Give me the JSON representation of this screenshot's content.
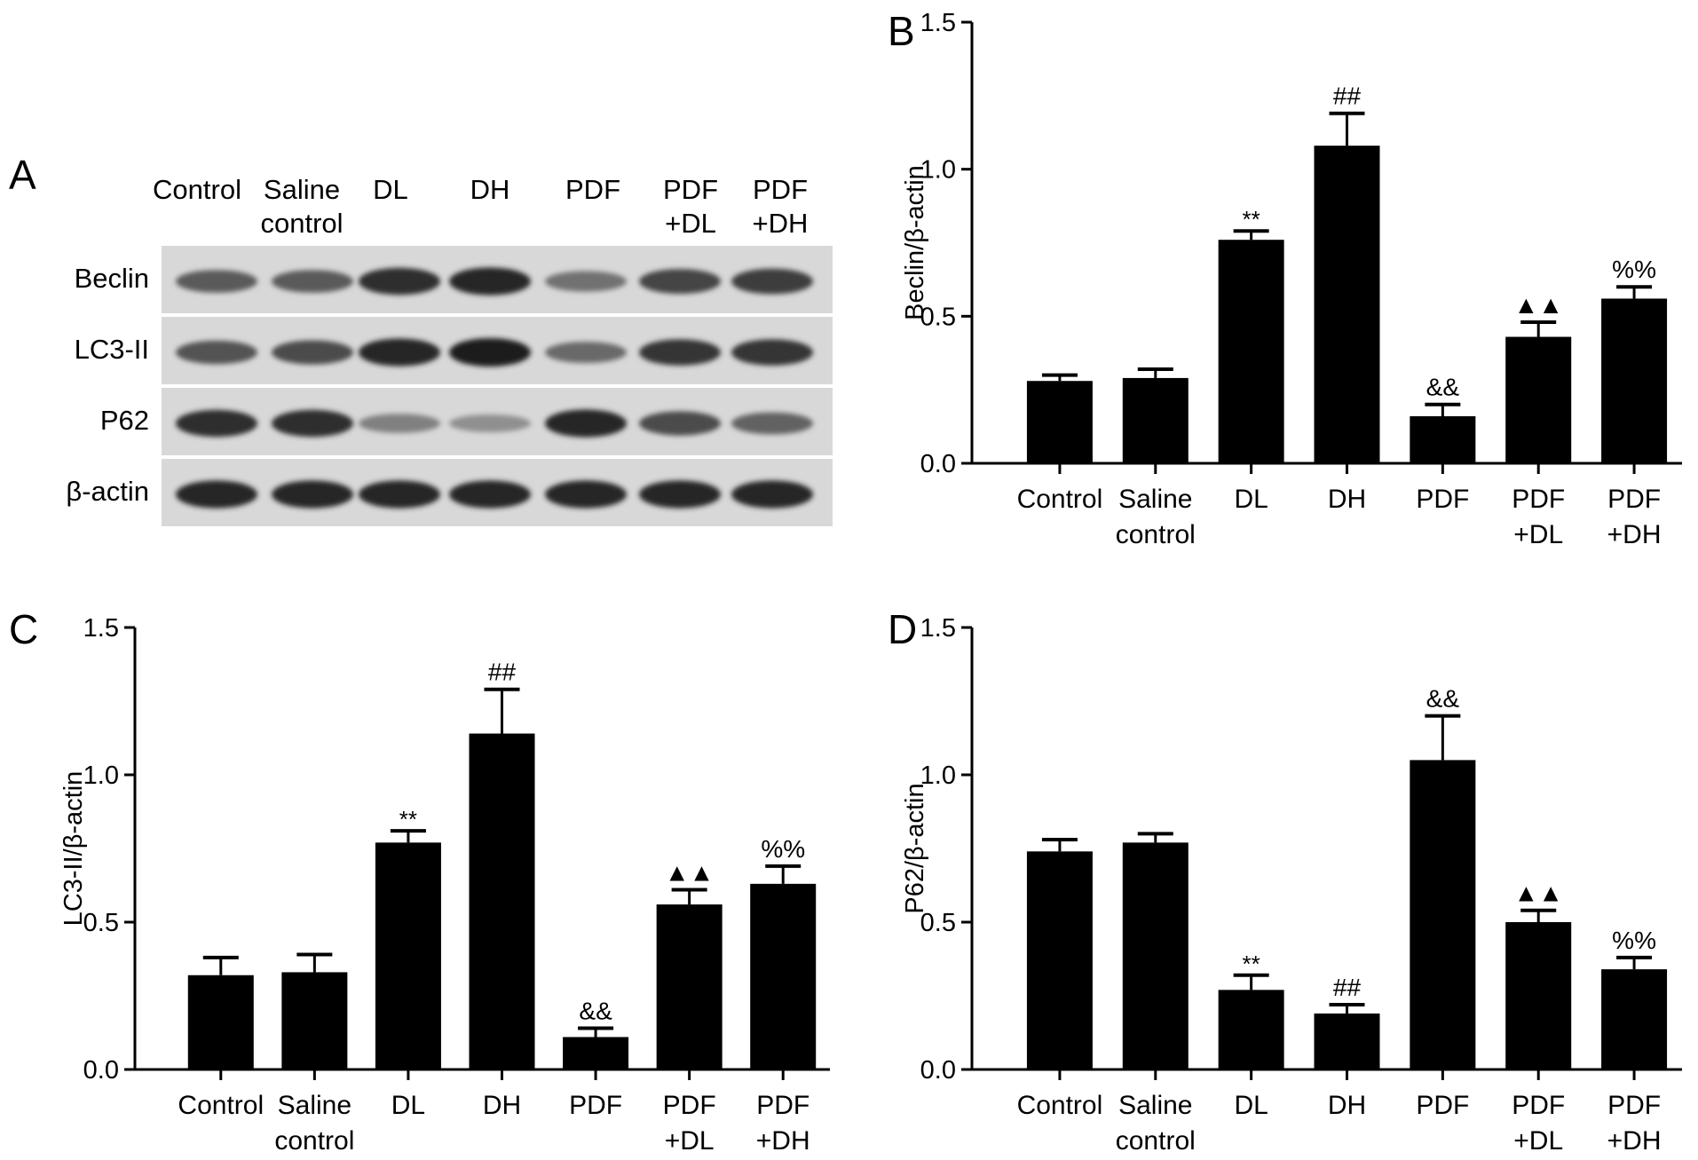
{
  "blot": {
    "letter": "A",
    "lanes": [
      [
        "Control"
      ],
      [
        "Saline",
        "control"
      ],
      [
        "DL"
      ],
      [
        "DH"
      ],
      [
        "PDF"
      ],
      [
        "PDF",
        "+DL"
      ],
      [
        "PDF",
        "+DH"
      ]
    ],
    "rows": [
      "Beclin",
      "LC3-II",
      "P62",
      "β-actin"
    ]
  },
  "chart_data": [
    {
      "panel": "B",
      "type": "bar",
      "ylabel": "Beclin/β-actin",
      "ylim": [
        0,
        1.5
      ],
      "yticks": [
        "0.0",
        "0.5",
        "1.0",
        "1.5"
      ],
      "categories": [
        [
          "Control"
        ],
        [
          "Saline",
          "control"
        ],
        [
          "DL"
        ],
        [
          "DH"
        ],
        [
          "PDF"
        ],
        [
          "PDF",
          "+DL"
        ],
        [
          "PDF",
          "+DH"
        ]
      ],
      "values": [
        0.28,
        0.29,
        0.76,
        1.08,
        0.16,
        0.43,
        0.56
      ],
      "errors": [
        0.02,
        0.03,
        0.03,
        0.11,
        0.04,
        0.05,
        0.04
      ],
      "annotations": [
        "",
        "",
        "**",
        "##",
        "&&",
        "▲▲",
        "%%"
      ]
    },
    {
      "panel": "C",
      "type": "bar",
      "ylabel": "LC3-II/β-actin",
      "ylim": [
        0,
        1.5
      ],
      "yticks": [
        "0.0",
        "0.5",
        "1.0",
        "1.5"
      ],
      "categories": [
        [
          "Control"
        ],
        [
          "Saline",
          "control"
        ],
        [
          "DL"
        ],
        [
          "DH"
        ],
        [
          "PDF"
        ],
        [
          "PDF",
          "+DL"
        ],
        [
          "PDF",
          "+DH"
        ]
      ],
      "values": [
        0.32,
        0.33,
        0.77,
        1.14,
        0.11,
        0.56,
        0.63
      ],
      "errors": [
        0.06,
        0.06,
        0.04,
        0.15,
        0.03,
        0.05,
        0.06
      ],
      "annotations": [
        "",
        "",
        "**",
        "##",
        "&&",
        "▲▲",
        "%%"
      ]
    },
    {
      "panel": "D",
      "type": "bar",
      "ylabel": "P62/β-actin",
      "ylim": [
        0,
        1.5
      ],
      "yticks": [
        "0.0",
        "0.5",
        "1.0",
        "1.5"
      ],
      "categories": [
        [
          "Control"
        ],
        [
          "Saline",
          "control"
        ],
        [
          "DL"
        ],
        [
          "DH"
        ],
        [
          "PDF"
        ],
        [
          "PDF",
          "+DL"
        ],
        [
          "PDF",
          "+DH"
        ]
      ],
      "values": [
        0.74,
        0.77,
        0.27,
        0.19,
        1.05,
        0.5,
        0.34
      ],
      "errors": [
        0.04,
        0.03,
        0.05,
        0.03,
        0.15,
        0.04,
        0.04
      ],
      "annotations": [
        "",
        "",
        "**",
        "##",
        "&&",
        "▲▲",
        "%%"
      ]
    }
  ]
}
